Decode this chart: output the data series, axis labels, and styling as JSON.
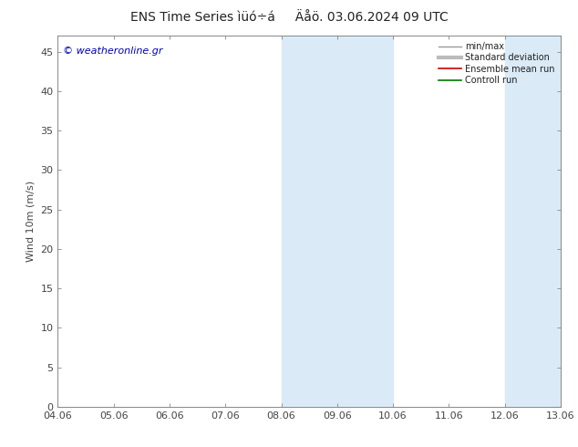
{
  "title": "ENS Time Series ìüó÷á     Äåö. 03.06.2024 09 UTC",
  "ylabel": "Wind 10m (m/s)",
  "watermark": "© weatheronline.gr",
  "xtick_labels": [
    "04.06",
    "05.06",
    "06.06",
    "07.06",
    "08.06",
    "09.06",
    "10.06",
    "11.06",
    "12.06",
    "13.06"
  ],
  "ytick_values": [
    0,
    5,
    10,
    15,
    20,
    25,
    30,
    35,
    40,
    45
  ],
  "ylim": [
    0,
    47
  ],
  "xlim": [
    0,
    9
  ],
  "band1_start": 4,
  "band1_end": 6,
  "band2_start": 8,
  "band2_end": 9,
  "band_color": "#daeaf7",
  "legend_entries": [
    {
      "label": "min/max",
      "color": "#999999",
      "linestyle": "-",
      "lw": 1.0
    },
    {
      "label": "Standard deviation",
      "color": "#bbbbbb",
      "linestyle": "-",
      "lw": 3.0
    },
    {
      "label": "Ensemble mean run",
      "color": "#cc0000",
      "linestyle": "-",
      "lw": 1.2
    },
    {
      "label": "Controll run",
      "color": "#007700",
      "linestyle": "-",
      "lw": 1.2
    }
  ],
  "bg_color": "#ffffff",
  "plot_bg_color": "#ffffff",
  "spine_color": "#888888",
  "tick_color": "#444444",
  "watermark_color": "#0000bb",
  "title_fontsize": 10,
  "tick_fontsize": 8,
  "ylabel_fontsize": 8,
  "watermark_fontsize": 8,
  "legend_fontsize": 7
}
